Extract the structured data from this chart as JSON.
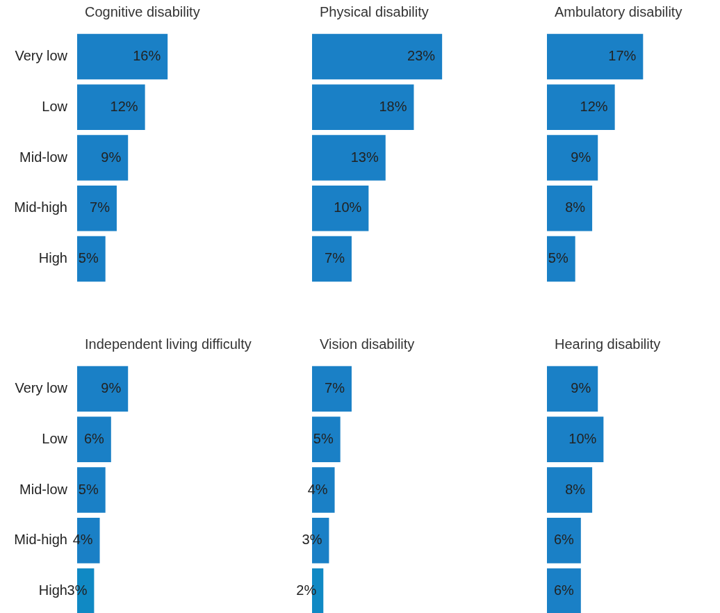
{
  "chart_data": [
    {
      "type": "bar",
      "orientation": "horizontal",
      "title": "Cognitive disability",
      "categories": [
        "Very low",
        "Low",
        "Mid-low",
        "Mid-high",
        "High"
      ],
      "values": [
        16,
        12,
        9,
        7,
        5
      ],
      "value_labels": [
        "16%",
        "12%",
        "9%",
        "7%",
        "5%"
      ],
      "color": "#1a80c6",
      "tick_labels": "y"
    },
    {
      "type": "bar",
      "orientation": "horizontal",
      "title": "Physical disability",
      "categories": [
        null,
        null,
        null,
        null,
        null
      ],
      "values": [
        23,
        18,
        13,
        10,
        7
      ],
      "value_labels": [
        "23%",
        "18%",
        "13%",
        "10%",
        "7%"
      ],
      "color": "#1a80c6",
      "tick_labels": false
    },
    {
      "type": "bar",
      "orientation": "horizontal",
      "title": "Ambulatory disability",
      "categories": [
        null,
        null,
        null,
        null,
        null
      ],
      "values": [
        17,
        12,
        9,
        8,
        5
      ],
      "value_labels": [
        "17%",
        "12%",
        "9%",
        "8%",
        "5%"
      ],
      "color": "#1a80c6",
      "tick_labels": false
    },
    {
      "type": "bar",
      "orientation": "horizontal",
      "title": "Independent living difficulty",
      "categories": [
        "Very low",
        "Low",
        "Mid-low",
        "Mid-high",
        "High"
      ],
      "values": [
        9,
        6,
        5,
        4,
        3
      ],
      "value_labels": [
        "9%",
        "6%",
        "5%",
        "4%",
        "3%"
      ],
      "colors": [
        "#1a80c6",
        "#1a80c6",
        "#1a80c6",
        "#1a80c6",
        "#1089c4"
      ],
      "tick_labels": "y"
    },
    {
      "type": "bar",
      "orientation": "horizontal",
      "title": "Vision disability",
      "categories": [
        null,
        null,
        null,
        null,
        null
      ],
      "values": [
        7,
        5,
        4,
        3,
        2
      ],
      "value_labels": [
        "7%",
        "5%",
        "4%",
        "3%",
        "2%"
      ],
      "colors": [
        "#1a80c6",
        "#1a80c6",
        "#1a80c6",
        "#1a80c6",
        "#1089c4"
      ],
      "tick_labels": false
    },
    {
      "type": "bar",
      "orientation": "horizontal",
      "title": "Hearing disability",
      "categories": [
        null,
        null,
        null,
        null,
        null
      ],
      "values": [
        9,
        10,
        8,
        6,
        6
      ],
      "value_labels": [
        "9%",
        "10%",
        "8%",
        "6%",
        "6%"
      ],
      "color": "#1a80c6",
      "tick_labels": false
    }
  ]
}
